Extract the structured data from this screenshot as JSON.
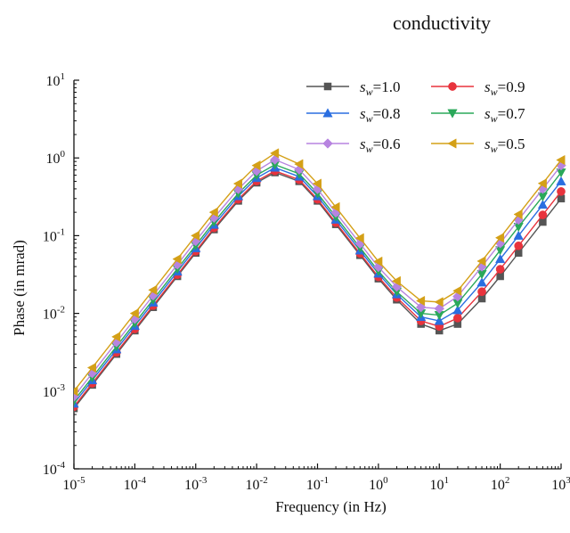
{
  "page": {
    "top_text": "conductivity"
  },
  "chart_data": {
    "type": "line",
    "title": "",
    "xlabel": "Frequency (in Hz)",
    "ylabel": "Phase (in mrad)",
    "xscale": "log",
    "yscale": "log",
    "xlim": [
      1e-05,
      1000
    ],
    "ylim": [
      0.0001,
      10
    ],
    "xticks": [
      {
        "value": 1e-05,
        "base": "10",
        "exp": "-5"
      },
      {
        "value": 0.0001,
        "base": "10",
        "exp": "-4"
      },
      {
        "value": 0.001,
        "base": "10",
        "exp": "-3"
      },
      {
        "value": 0.01,
        "base": "10",
        "exp": "-2"
      },
      {
        "value": 0.1,
        "base": "10",
        "exp": "-1"
      },
      {
        "value": 1,
        "base": "10",
        "exp": "0"
      },
      {
        "value": 10,
        "base": "10",
        "exp": "1"
      },
      {
        "value": 100,
        "base": "10",
        "exp": "2"
      },
      {
        "value": 1000,
        "base": "10",
        "exp": "3"
      }
    ],
    "yticks": [
      {
        "value": 0.0001,
        "base": "10",
        "exp": "-4"
      },
      {
        "value": 0.001,
        "base": "10",
        "exp": "-3"
      },
      {
        "value": 0.01,
        "base": "10",
        "exp": "-2"
      },
      {
        "value": 0.1,
        "base": "10",
        "exp": "-1"
      },
      {
        "value": 1,
        "base": "10",
        "exp": "0"
      },
      {
        "value": 10,
        "base": "10",
        "exp": "1"
      }
    ],
    "grid": false,
    "legend_position": "top-right",
    "x": [
      1e-05,
      2e-05,
      5e-05,
      0.0001,
      0.0002,
      0.0005,
      0.001,
      0.002,
      0.005,
      0.01,
      0.02,
      0.05,
      0.1,
      0.2,
      0.5,
      1,
      2,
      5,
      10,
      20,
      50,
      100,
      200,
      500,
      1000
    ],
    "series": [
      {
        "label_base": "s",
        "label_sub": "w",
        "label_value": "=1.0",
        "color": "#555555",
        "marker": "square",
        "values": [
          0.0006,
          0.0012,
          0.003,
          0.006,
          0.012,
          0.03,
          0.06,
          0.12,
          0.28,
          0.48,
          0.65,
          0.5,
          0.28,
          0.14,
          0.056,
          0.028,
          0.015,
          0.0073,
          0.006,
          0.0073,
          0.0155,
          0.03,
          0.06,
          0.15,
          0.3
        ]
      },
      {
        "label_base": "s",
        "label_sub": "w",
        "label_value": "=0.9",
        "color": "#e8333d",
        "marker": "circle",
        "values": [
          0.00063,
          0.00126,
          0.00315,
          0.0063,
          0.0126,
          0.0315,
          0.063,
          0.126,
          0.294,
          0.504,
          0.68,
          0.525,
          0.294,
          0.147,
          0.059,
          0.0295,
          0.016,
          0.008,
          0.0068,
          0.0087,
          0.019,
          0.037,
          0.074,
          0.185,
          0.37
        ]
      },
      {
        "label_base": "s",
        "label_sub": "w",
        "label_value": "=0.8",
        "color": "#2a6ee0",
        "marker": "triangle-up",
        "values": [
          0.00069,
          0.00138,
          0.00345,
          0.0069,
          0.0138,
          0.0345,
          0.069,
          0.138,
          0.322,
          0.552,
          0.75,
          0.575,
          0.322,
          0.161,
          0.0645,
          0.0325,
          0.0176,
          0.009,
          0.008,
          0.011,
          0.025,
          0.05,
          0.1,
          0.25,
          0.5
        ]
      },
      {
        "label_base": "s",
        "label_sub": "w",
        "label_value": "=0.7",
        "color": "#2aa85a",
        "marker": "triangle-down",
        "values": [
          0.00075,
          0.0015,
          0.00375,
          0.0075,
          0.015,
          0.0375,
          0.075,
          0.15,
          0.35,
          0.6,
          0.82,
          0.625,
          0.35,
          0.175,
          0.07,
          0.035,
          0.019,
          0.01,
          0.0095,
          0.0135,
          0.032,
          0.065,
          0.13,
          0.32,
          0.65
        ]
      },
      {
        "label_base": "s",
        "label_sub": "w",
        "label_value": "=0.6",
        "color": "#b784e0",
        "marker": "diamond",
        "values": [
          0.00085,
          0.0017,
          0.00425,
          0.0085,
          0.017,
          0.0425,
          0.085,
          0.17,
          0.397,
          0.68,
          0.95,
          0.708,
          0.397,
          0.198,
          0.079,
          0.0395,
          0.022,
          0.012,
          0.0115,
          0.0165,
          0.04,
          0.08,
          0.16,
          0.4,
          0.8
        ]
      },
      {
        "label_base": "s",
        "label_sub": "w",
        "label_value": "=0.5",
        "color": "#d4a017",
        "marker": "triangle-left",
        "values": [
          0.001,
          0.002,
          0.005,
          0.01,
          0.02,
          0.05,
          0.1,
          0.2,
          0.467,
          0.8,
          1.15,
          0.833,
          0.467,
          0.233,
          0.093,
          0.0465,
          0.026,
          0.0145,
          0.014,
          0.0195,
          0.047,
          0.094,
          0.188,
          0.47,
          0.94
        ]
      }
    ]
  }
}
